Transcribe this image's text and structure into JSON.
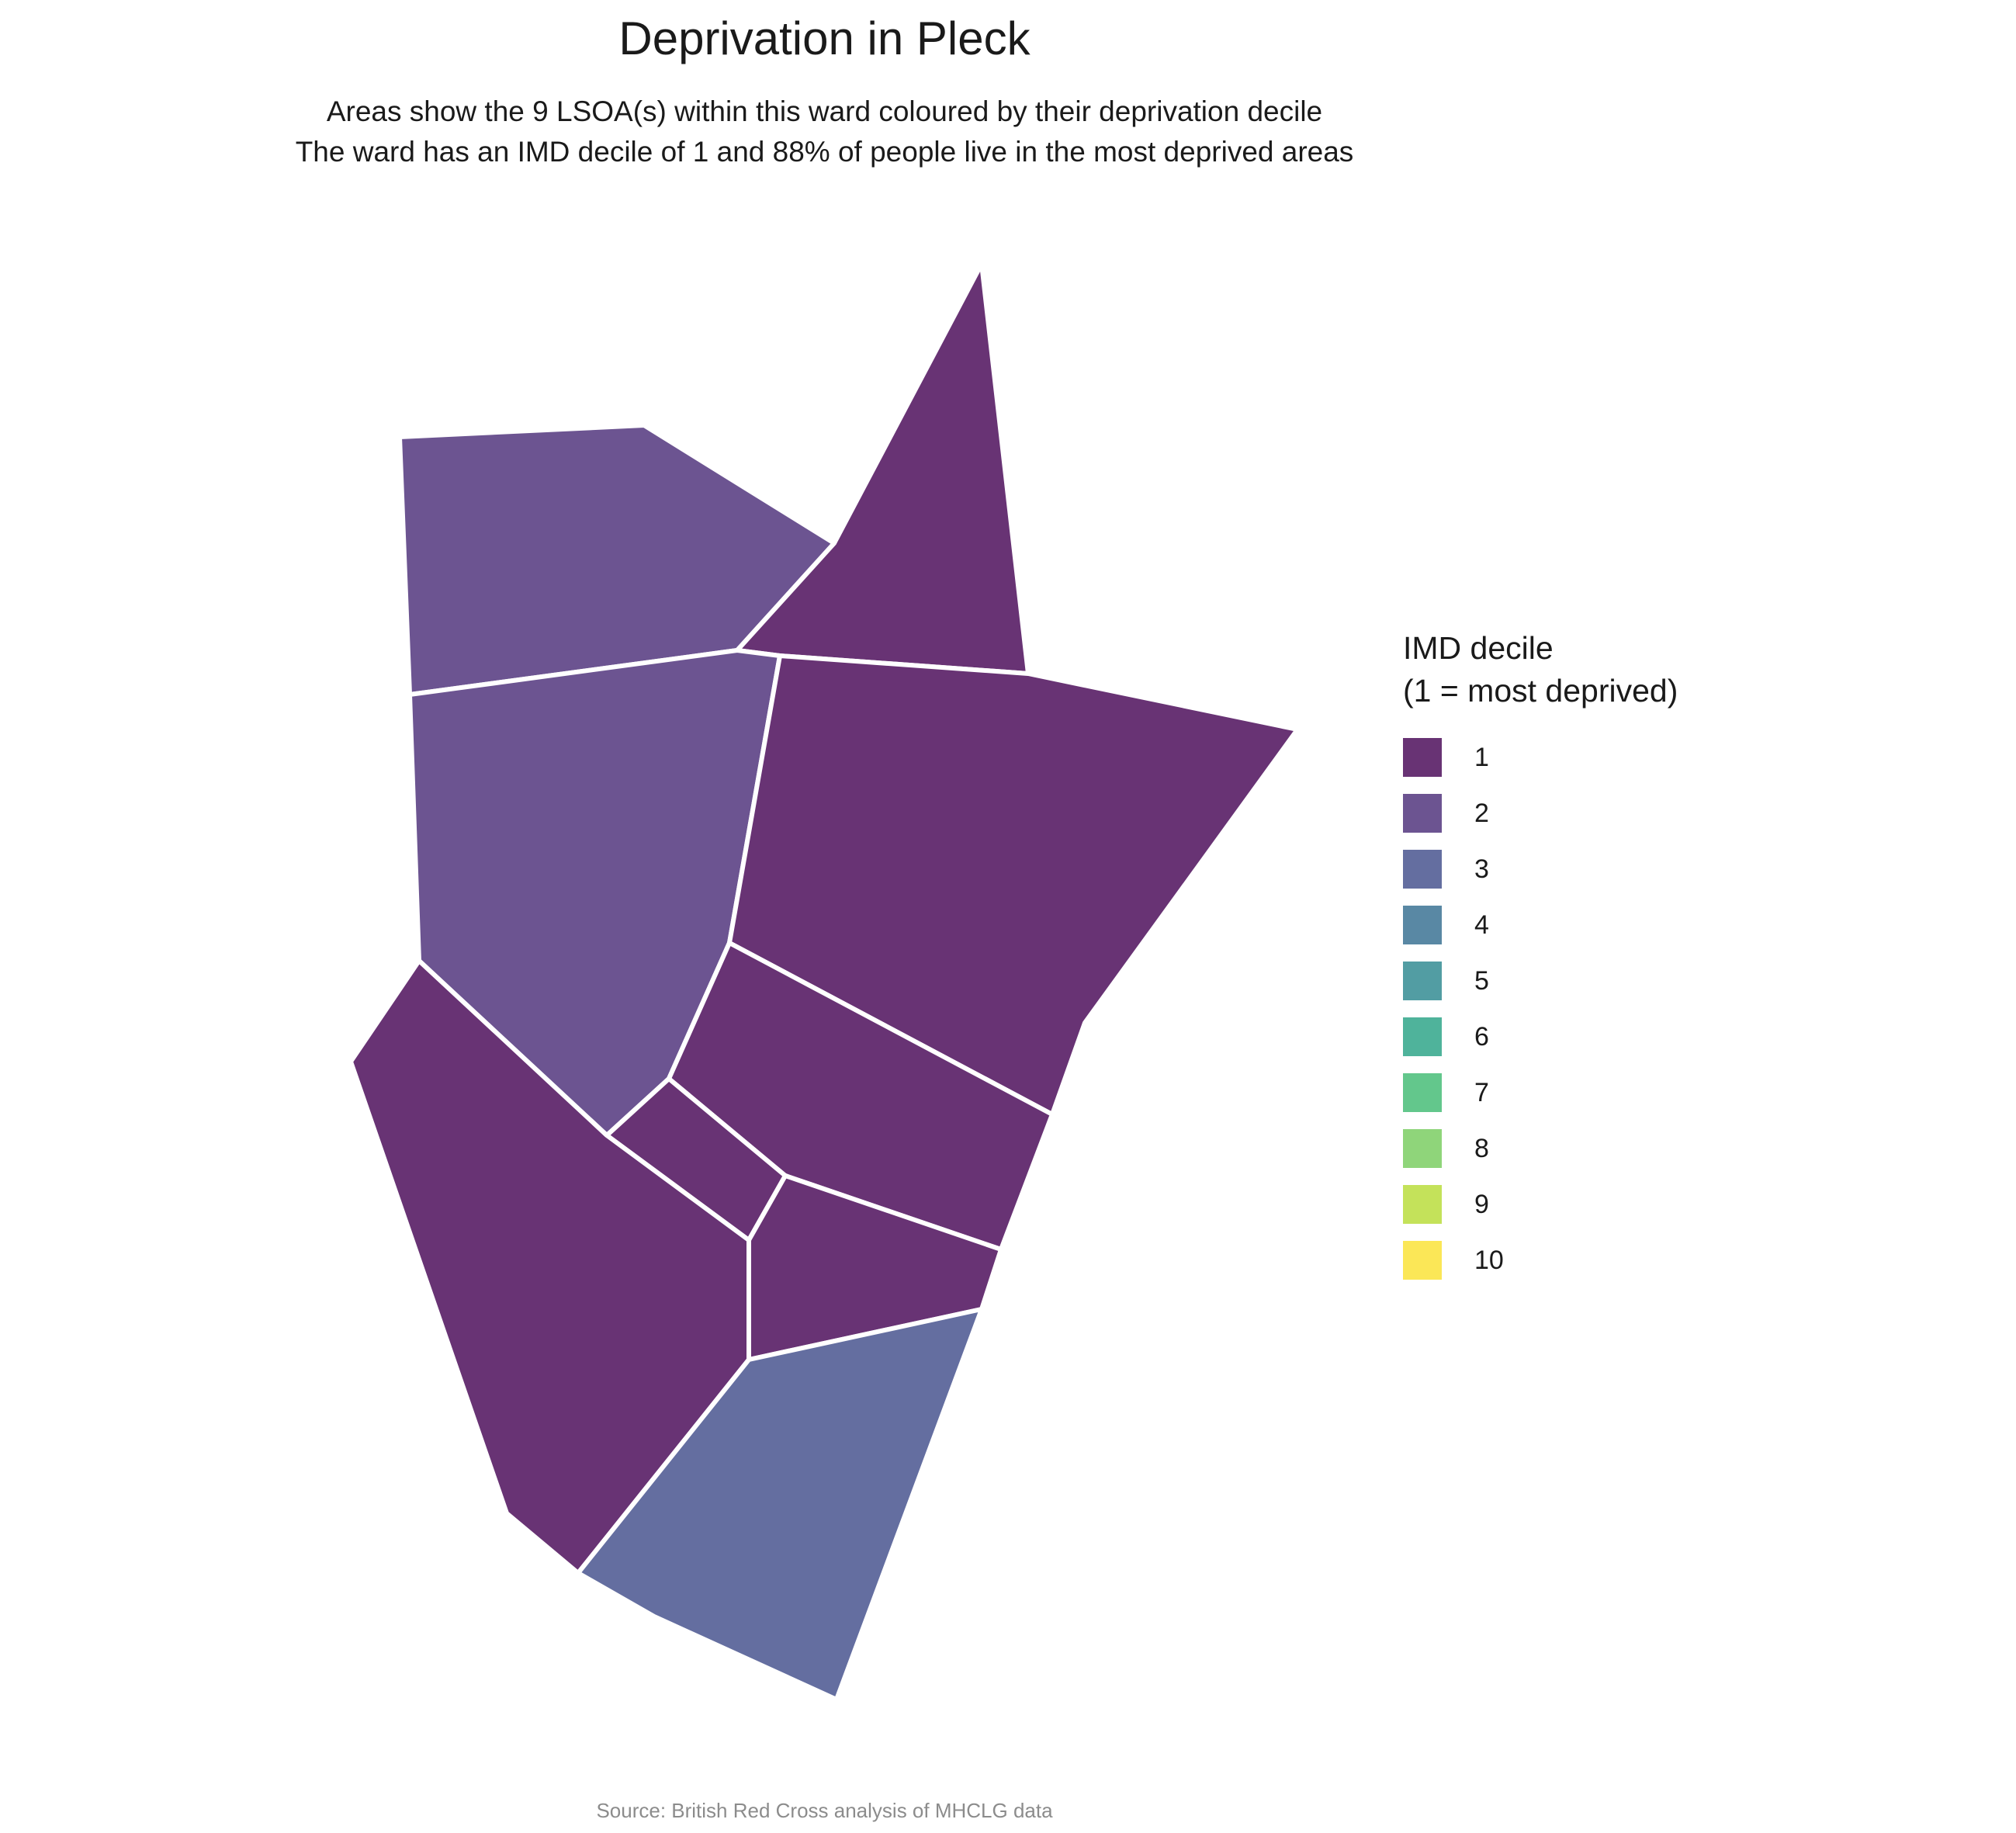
{
  "title": "Deprivation in Pleck",
  "subtitle": {
    "line1": "Areas show the 9 LSOA(s) within this ward coloured by their deprivation decile",
    "line2": "The ward has an IMD decile of 1 and 88% of people live in the most deprived areas"
  },
  "legend": {
    "title_line1": "IMD decile",
    "title_line2": "(1 = most deprived)",
    "items": [
      {
        "label": "1",
        "color": "#683374"
      },
      {
        "label": "2",
        "color": "#6c5491"
      },
      {
        "label": "3",
        "color": "#646ea0"
      },
      {
        "label": "4",
        "color": "#5988a4"
      },
      {
        "label": "5",
        "color": "#529da3"
      },
      {
        "label": "6",
        "color": "#4fb39b"
      },
      {
        "label": "7",
        "color": "#63c78c"
      },
      {
        "label": "8",
        "color": "#8fd57a"
      },
      {
        "label": "9",
        "color": "#c4e25a"
      },
      {
        "label": "10",
        "color": "#fbe757"
      }
    ]
  },
  "areas": [
    {
      "name": "north-west",
      "decile": 2
    },
    {
      "name": "north-east-spike",
      "decile": 1
    },
    {
      "name": "west-central",
      "decile": 2
    },
    {
      "name": "east-large",
      "decile": 1
    },
    {
      "name": "east-middle",
      "decile": 1
    },
    {
      "name": "center-small",
      "decile": 1
    },
    {
      "name": "south-center",
      "decile": 1
    },
    {
      "name": "south-west",
      "decile": 1
    },
    {
      "name": "south",
      "decile": 3
    }
  ],
  "source": "Source: British Red Cross analysis of MHCLG data"
}
